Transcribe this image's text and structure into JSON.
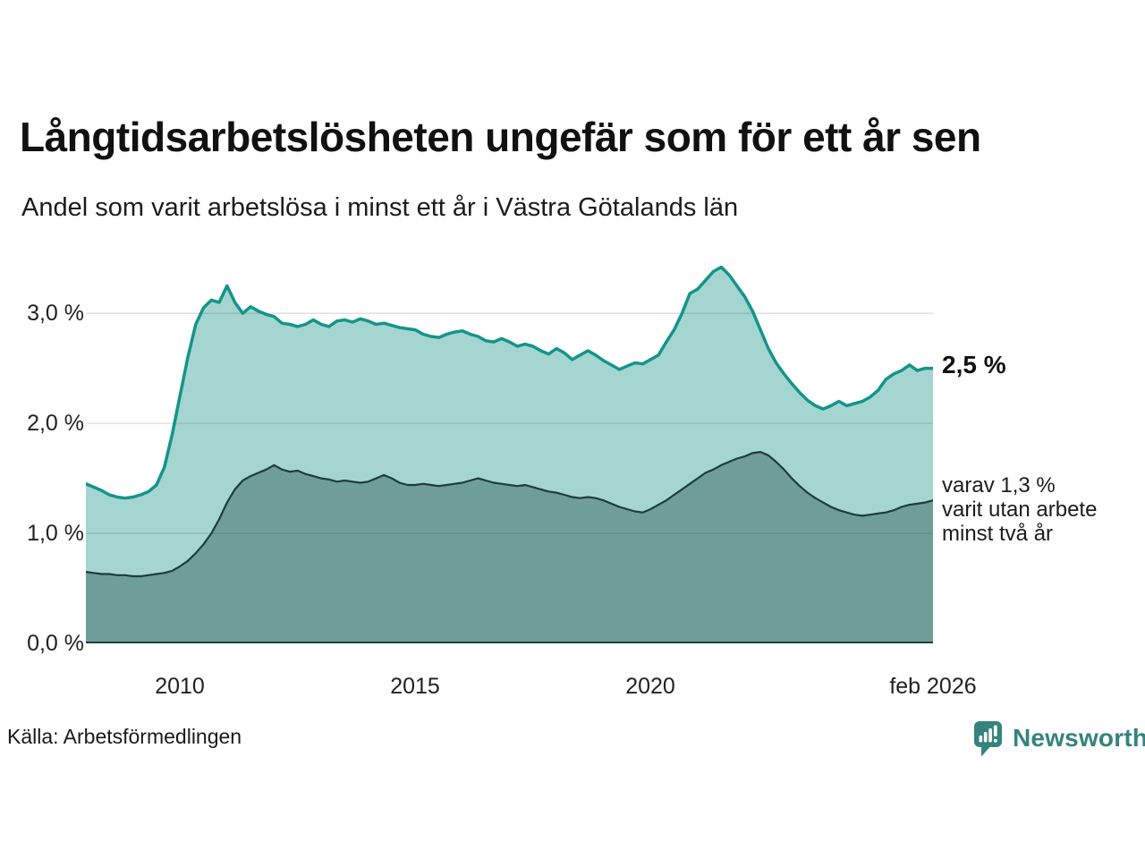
{
  "header": {
    "title": "Långtidsarbetslösheten ungefär som för ett år sen",
    "subtitle": "Andel som varit arbetslösa i minst ett år i Västra Götalands län"
  },
  "chart_data": {
    "type": "area",
    "title": "Långtidsarbetslösheten ungefär som för ett år sen",
    "subtitle": "Andel som varit arbetslösa i minst ett år i Västra Götalands län",
    "x_start": 2008.0,
    "x_end": 2026.0,
    "x_unit": "year (monthly series, ends feb 2026)",
    "ylim": [
      0,
      3.53
    ],
    "grid_values": [
      1,
      2,
      3
    ],
    "grid_on": true,
    "legend_position": "right-annotations",
    "y_ticks": [
      {
        "value": 0,
        "label": "0,0 %"
      },
      {
        "value": 1,
        "label": "1,0 %"
      },
      {
        "value": 2,
        "label": "2,0 %"
      },
      {
        "value": 3,
        "label": "3,0 %"
      }
    ],
    "x_ticks": [
      {
        "value": 2010,
        "label": "2010"
      },
      {
        "value": 2015,
        "label": "2015"
      },
      {
        "value": 2020,
        "label": "2020"
      },
      {
        "value": 2026,
        "label": "feb 2026"
      }
    ],
    "series": [
      {
        "name": "Andel som varit arbetslösa minst ett år",
        "line_color": "#14948a",
        "fill_color": "#a5d5d0",
        "line_width": 3.5,
        "values": [
          1.45,
          1.42,
          1.39,
          1.35,
          1.33,
          1.32,
          1.33,
          1.35,
          1.38,
          1.44,
          1.6,
          1.9,
          2.25,
          2.6,
          2.9,
          3.05,
          3.12,
          3.1,
          3.25,
          3.1,
          3.0,
          3.06,
          3.02,
          2.99,
          2.97,
          2.91,
          2.9,
          2.88,
          2.9,
          2.94,
          2.9,
          2.88,
          2.93,
          2.94,
          2.92,
          2.95,
          2.93,
          2.9,
          2.91,
          2.89,
          2.87,
          2.86,
          2.85,
          2.81,
          2.79,
          2.78,
          2.81,
          2.83,
          2.84,
          2.81,
          2.79,
          2.75,
          2.74,
          2.77,
          2.74,
          2.7,
          2.72,
          2.7,
          2.66,
          2.63,
          2.68,
          2.64,
          2.58,
          2.62,
          2.66,
          2.62,
          2.57,
          2.53,
          2.49,
          2.52,
          2.55,
          2.54,
          2.58,
          2.62,
          2.74,
          2.85,
          3.0,
          3.18,
          3.22,
          3.3,
          3.38,
          3.42,
          3.35,
          3.25,
          3.15,
          3.02,
          2.85,
          2.68,
          2.55,
          2.45,
          2.36,
          2.28,
          2.21,
          2.16,
          2.13,
          2.16,
          2.2,
          2.16,
          2.18,
          2.2,
          2.24,
          2.3,
          2.4,
          2.45,
          2.48,
          2.53,
          2.48,
          2.5,
          2.5
        ]
      },
      {
        "name": "varav utan arbete minst två år",
        "line_color": "#1e3c3a",
        "fill_color": "#6f9e99",
        "line_width": 2.2,
        "values": [
          0.65,
          0.64,
          0.63,
          0.63,
          0.62,
          0.62,
          0.61,
          0.61,
          0.62,
          0.63,
          0.64,
          0.66,
          0.7,
          0.75,
          0.82,
          0.9,
          1.0,
          1.13,
          1.28,
          1.4,
          1.48,
          1.52,
          1.55,
          1.58,
          1.62,
          1.58,
          1.56,
          1.57,
          1.54,
          1.52,
          1.5,
          1.49,
          1.47,
          1.48,
          1.47,
          1.46,
          1.47,
          1.5,
          1.53,
          1.5,
          1.46,
          1.44,
          1.44,
          1.45,
          1.44,
          1.43,
          1.44,
          1.45,
          1.46,
          1.48,
          1.5,
          1.48,
          1.46,
          1.45,
          1.44,
          1.43,
          1.44,
          1.42,
          1.4,
          1.38,
          1.37,
          1.35,
          1.33,
          1.32,
          1.33,
          1.32,
          1.3,
          1.27,
          1.24,
          1.22,
          1.2,
          1.19,
          1.22,
          1.26,
          1.3,
          1.35,
          1.4,
          1.45,
          1.5,
          1.55,
          1.58,
          1.62,
          1.65,
          1.68,
          1.7,
          1.73,
          1.74,
          1.71,
          1.65,
          1.58,
          1.5,
          1.43,
          1.37,
          1.32,
          1.28,
          1.24,
          1.21,
          1.19,
          1.17,
          1.16,
          1.17,
          1.18,
          1.19,
          1.21,
          1.24,
          1.26,
          1.27,
          1.28,
          1.3
        ]
      }
    ],
    "annotations": {
      "latest_total": "2,5 %",
      "latest_two_year_line1": "varav 1,3 %",
      "latest_two_year_line2": "varit utan arbete",
      "latest_two_year_line3": "minst två år"
    }
  },
  "footer": {
    "source": "Källa: Arbetsförmedlingen",
    "brand": "Newsworthy",
    "brand_color": "#35837e"
  },
  "icons": {
    "logo": "newsworthy-chart-bubble-icon"
  }
}
